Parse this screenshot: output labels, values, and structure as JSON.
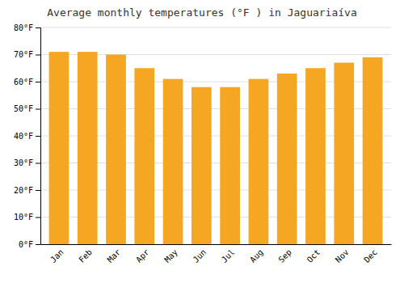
{
  "chart_data": {
    "type": "bar",
    "title": "Average monthly temperatures (°F ) in Jaguariaíva",
    "categories": [
      "Jan",
      "Feb",
      "Mar",
      "Apr",
      "May",
      "Jun",
      "Jul",
      "Aug",
      "Sep",
      "Oct",
      "Nov",
      "Dec"
    ],
    "values": [
      71,
      71,
      70,
      65,
      61,
      58,
      58,
      61,
      63,
      65,
      67,
      69
    ],
    "color": "#F5A623",
    "ylim": [
      0,
      80
    ],
    "yticks": [
      {
        "value": 0,
        "label": "0°F"
      },
      {
        "value": 10,
        "label": "10°F"
      },
      {
        "value": 20,
        "label": "20°F"
      },
      {
        "value": 30,
        "label": "30°F"
      },
      {
        "value": 40,
        "label": "40°F"
      },
      {
        "value": 50,
        "label": "50°F"
      },
      {
        "value": 60,
        "label": "60°F"
      },
      {
        "value": 70,
        "label": "70°F"
      },
      {
        "value": 80,
        "label": "80°F"
      }
    ],
    "grid": true
  }
}
